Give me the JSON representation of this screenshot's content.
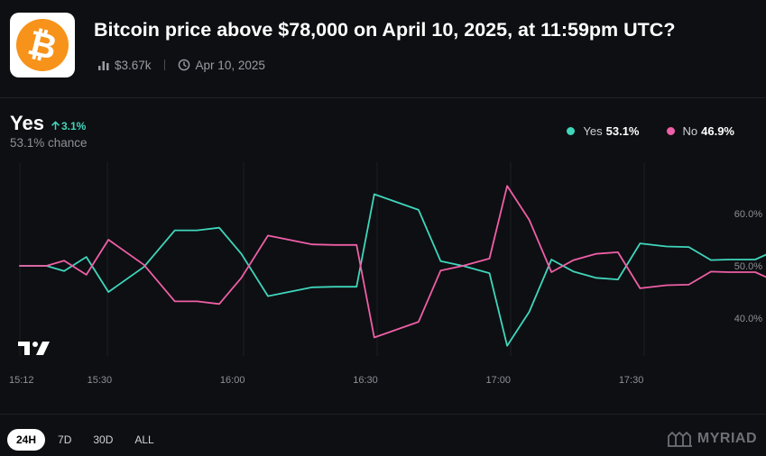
{
  "market": {
    "title": "Bitcoin price above $78,000 on April 10, 2025, at 11:59pm UTC?",
    "volume": "$3.67k",
    "date": "Apr 10, 2025",
    "logo_glyph": "₿",
    "logo_color": "#f7931a"
  },
  "outcome": {
    "label": "Yes",
    "change": "3.1%",
    "chance": "53.1% chance"
  },
  "legend": [
    {
      "name": "Yes",
      "value": "53.1%",
      "color": "#3fd6bd"
    },
    {
      "name": "No",
      "value": "46.9%",
      "color": "#ee5fa7"
    }
  ],
  "time_ranges": [
    "24H",
    "7D",
    "30D",
    "ALL"
  ],
  "active_range": "24H",
  "brand": "MYRIAD",
  "chart_data": {
    "type": "line",
    "x_tick_labels": [
      "15:12",
      "15:30",
      "16:00",
      "16:30",
      "17:00",
      "17:30"
    ],
    "y_tick_labels": [
      "40.0%",
      "50.0%",
      "60.0%"
    ],
    "ylim": [
      35,
      70
    ],
    "grid": "vertical",
    "x_minutes": [
      0,
      6,
      10,
      15,
      20,
      28,
      35,
      40,
      45,
      50,
      56,
      66,
      71,
      76,
      80,
      90,
      95,
      100,
      106,
      110,
      115,
      120,
      125,
      130,
      135,
      140,
      146,
      151,
      156,
      160,
      166,
      171
    ],
    "series": [
      {
        "name": "Yes",
        "color": "#3fd6bd",
        "values": [
          50.0,
          50.0,
          49.0,
          51.7,
          45.0,
          49.8,
          56.8,
          56.8,
          57.3,
          52.3,
          44.2,
          45.9,
          46.0,
          46.0,
          63.7,
          60.7,
          50.9,
          50.0,
          48.6,
          34.7,
          41.2,
          51.2,
          48.9,
          47.7,
          47.4,
          54.3,
          53.7,
          53.6,
          51.1,
          51.2,
          51.2,
          53.1
        ]
      },
      {
        "name": "No",
        "color": "#ee5fa7",
        "values": [
          50.0,
          50.0,
          51.0,
          48.3,
          55.0,
          50.2,
          43.2,
          43.2,
          42.7,
          47.7,
          55.8,
          54.1,
          54.0,
          54.0,
          36.3,
          39.3,
          49.1,
          50.0,
          51.4,
          65.3,
          58.8,
          48.8,
          51.1,
          52.3,
          52.6,
          45.7,
          46.3,
          46.4,
          48.9,
          48.8,
          48.8,
          46.9
        ]
      }
    ]
  }
}
